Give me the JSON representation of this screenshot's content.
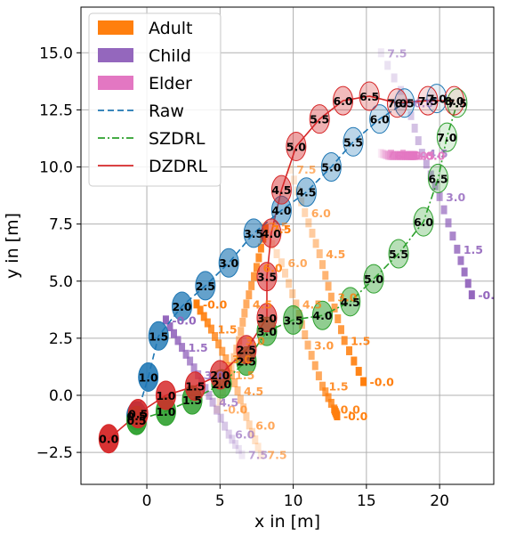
{
  "chart_data": {
    "type": "scatter",
    "xlabel": "x in [m]",
    "ylabel": "y in [m]",
    "xlim": [
      -4.5,
      23.7
    ],
    "ylim": [
      -3.9,
      17.0
    ],
    "xticks": [
      0,
      5,
      10,
      15,
      20
    ],
    "yticks": [
      -2.5,
      0.0,
      2.5,
      5.0,
      7.5,
      10.0,
      12.5,
      15.0
    ],
    "xtick_labels": [
      "0",
      "5",
      "10",
      "15",
      "20"
    ],
    "ytick_labels": [
      "−2.5",
      "0.0",
      "2.5",
      "5.0",
      "7.5",
      "10.0",
      "12.5",
      "15.0"
    ],
    "grid": true,
    "legend_position": "top-left",
    "legend": [
      {
        "name": "Adult",
        "kind": "patch",
        "color": "#ff7f0e"
      },
      {
        "name": "Child",
        "kind": "patch",
        "color": "#9467bd"
      },
      {
        "name": "Elder",
        "kind": "patch",
        "color": "#e377c2"
      },
      {
        "name": "Raw",
        "kind": "line",
        "color": "#1f77b4",
        "dash": "dashed"
      },
      {
        "name": "SZDRL",
        "kind": "line",
        "color": "#2ca02c",
        "dash": "dashdot"
      },
      {
        "name": "DZDRL",
        "kind": "line",
        "color": "#d62728",
        "dash": "solid"
      }
    ],
    "obstacles": [
      {
        "name": "Adult",
        "color": "#ff7f0e",
        "points": [
          {
            "t": "-0.0",
            "x": 13.0,
            "y": -0.9
          },
          {
            "t": "0.0",
            "x": 12.8,
            "y": -0.6
          },
          {
            "t": "1.5",
            "x": 12.0,
            "y": 0.4
          },
          {
            "t": "3.0",
            "x": 11.0,
            "y": 2.2
          },
          {
            "t": "4.5",
            "x": 10.2,
            "y": 4.0
          },
          {
            "t": "6.0",
            "x": 9.2,
            "y": 5.8
          },
          {
            "t": "7.5",
            "x": 7.9,
            "y": 7.4
          }
        ]
      },
      {
        "name": "Adult",
        "color": "#ff7f0e",
        "points": [
          {
            "t": "7.5",
            "x": 8.1,
            "y": 7.3
          },
          {
            "t": "6.0",
            "x": 7.5,
            "y": 5.6
          },
          {
            "t": "4.5",
            "x": 6.8,
            "y": 4.0
          },
          {
            "t": "3.0",
            "x": 6.3,
            "y": 2.4
          },
          {
            "t": "1.5",
            "x": 5.6,
            "y": 0.9
          },
          {
            "t": "-0.0",
            "x": 4.8,
            "y": -0.6
          }
        ]
      },
      {
        "name": "Adult",
        "color": "#ff7f0e",
        "points": [
          {
            "t": "-0.0",
            "x": 14.8,
            "y": 0.6
          },
          {
            "t": "1.5",
            "x": 13.5,
            "y": 2.4
          },
          {
            "t": "3.0",
            "x": 12.6,
            "y": 4.3
          },
          {
            "t": "4.5",
            "x": 11.8,
            "y": 6.2
          },
          {
            "t": "6.0",
            "x": 10.8,
            "y": 8.0
          },
          {
            "t": "7.5",
            "x": 9.8,
            "y": 9.9
          }
        ]
      },
      {
        "name": "Adult",
        "color": "#ff7f0e",
        "points": [
          {
            "t": "-0.0",
            "x": 3.4,
            "y": 4.0
          },
          {
            "t": "1.5",
            "x": 4.4,
            "y": 2.9
          },
          {
            "t": "3.0",
            "x": 5.4,
            "y": 1.6
          },
          {
            "t": "4.5",
            "x": 6.2,
            "y": 0.2
          },
          {
            "t": "6.0",
            "x": 7.0,
            "y": -1.3
          },
          {
            "t": "7.5",
            "x": 7.8,
            "y": -2.6
          }
        ]
      },
      {
        "name": "Child",
        "color": "#9467bd",
        "points": [
          {
            "t": "-0.0",
            "x": 1.3,
            "y": 3.3
          },
          {
            "t": "1.5",
            "x": 2.4,
            "y": 2.1
          },
          {
            "t": "3.0",
            "x": 3.5,
            "y": 0.9
          },
          {
            "t": "4.5",
            "x": 4.5,
            "y": -0.3
          },
          {
            "t": "6.0",
            "x": 5.6,
            "y": -1.7
          },
          {
            "t": "7.5",
            "x": 6.5,
            "y": -2.6
          }
        ]
      },
      {
        "name": "Child",
        "color": "#9467bd",
        "points": [
          {
            "t": "-0.0",
            "x": 22.2,
            "y": 4.4
          },
          {
            "t": "1.5",
            "x": 21.2,
            "y": 6.4
          },
          {
            "t": "3.0",
            "x": 20.0,
            "y": 8.7
          },
          {
            "t": "4.5",
            "x": 18.8,
            "y": 10.6
          },
          {
            "t": "6.0",
            "x": 17.8,
            "y": 12.8
          },
          {
            "t": "7.5",
            "x": 16.0,
            "y": 15.0
          }
        ]
      },
      {
        "name": "Elder",
        "color": "#e377c2",
        "points": [
          {
            "t": "-0.0",
            "x": 18.3,
            "y": 10.5
          },
          {
            "t": "1.5",
            "x": 17.9,
            "y": 10.5
          },
          {
            "t": "3.0",
            "x": 17.4,
            "y": 10.5
          },
          {
            "t": "4.5",
            "x": 16.9,
            "y": 10.5
          },
          {
            "t": "6.0",
            "x": 16.5,
            "y": 10.5
          },
          {
            "t": "7.5",
            "x": 16.0,
            "y": 10.6
          }
        ]
      }
    ],
    "trajectories": [
      {
        "name": "Raw",
        "color": "#1f77b4",
        "dash": "dashed",
        "points": [
          {
            "t": "0.5",
            "x": -0.7,
            "y": -0.9
          },
          {
            "t": "1.0",
            "x": 0.1,
            "y": 0.8
          },
          {
            "t": "1.5",
            "x": 0.8,
            "y": 2.6
          },
          {
            "t": "2.0",
            "x": 2.4,
            "y": 3.9
          },
          {
            "t": "2.5",
            "x": 4.0,
            "y": 4.8
          },
          {
            "t": "3.0",
            "x": 5.6,
            "y": 5.8
          },
          {
            "t": "3.5",
            "x": 7.3,
            "y": 7.1
          },
          {
            "t": "4.0",
            "x": 9.2,
            "y": 8.1
          },
          {
            "t": "4.5",
            "x": 10.9,
            "y": 8.9
          },
          {
            "t": "5.0",
            "x": 12.6,
            "y": 10.0
          },
          {
            "t": "5.5",
            "x": 14.1,
            "y": 11.1
          },
          {
            "t": "6.0",
            "x": 15.9,
            "y": 12.1
          },
          {
            "t": "6.5",
            "x": 17.6,
            "y": 12.8
          },
          {
            "t": "7.0",
            "x": 19.8,
            "y": 13.0
          }
        ]
      },
      {
        "name": "SZDRL",
        "color": "#2ca02c",
        "dash": "dashdot",
        "points": [
          {
            "t": "0.5",
            "x": -0.7,
            "y": -1.1
          },
          {
            "t": "1.0",
            "x": 1.3,
            "y": -0.7
          },
          {
            "t": "1.5",
            "x": 3.1,
            "y": -0.2
          },
          {
            "t": "2.0",
            "x": 5.1,
            "y": 0.5
          },
          {
            "t": "2.5",
            "x": 6.8,
            "y": 1.5
          },
          {
            "t": "3.0",
            "x": 8.2,
            "y": 2.8
          },
          {
            "t": "3.5",
            "x": 10.0,
            "y": 3.3
          },
          {
            "t": "4.0",
            "x": 12.0,
            "y": 3.5
          },
          {
            "t": "4.5",
            "x": 13.9,
            "y": 4.1
          },
          {
            "t": "5.0",
            "x": 15.5,
            "y": 5.1
          },
          {
            "t": "5.5",
            "x": 17.2,
            "y": 6.2
          },
          {
            "t": "6.0",
            "x": 18.9,
            "y": 7.6
          },
          {
            "t": "6.5",
            "x": 19.9,
            "y": 9.5
          },
          {
            "t": "7.0",
            "x": 20.5,
            "y": 11.3
          },
          {
            "t": "7.5",
            "x": 21.2,
            "y": 12.8
          }
        ]
      },
      {
        "name": "DZDRL",
        "color": "#d62728",
        "dash": "solid",
        "points": [
          {
            "t": "0.0",
            "x": -2.6,
            "y": -1.9
          },
          {
            "t": "0.5",
            "x": -0.6,
            "y": -0.8
          },
          {
            "t": "1.0",
            "x": 1.3,
            "y": 0.0
          },
          {
            "t": "1.5",
            "x": 3.3,
            "y": 0.4
          },
          {
            "t": "2.0",
            "x": 5.0,
            "y": 0.9
          },
          {
            "t": "2.5",
            "x": 6.8,
            "y": 2.0
          },
          {
            "t": "3.0",
            "x": 8.2,
            "y": 3.4
          },
          {
            "t": "3.5",
            "x": 8.2,
            "y": 5.2
          },
          {
            "t": "4.0",
            "x": 8.5,
            "y": 7.1
          },
          {
            "t": "4.5",
            "x": 9.2,
            "y": 9.0
          },
          {
            "t": "5.0",
            "x": 10.2,
            "y": 10.9
          },
          {
            "t": "5.5",
            "x": 11.8,
            "y": 12.1
          },
          {
            "t": "6.0",
            "x": 13.4,
            "y": 12.9
          },
          {
            "t": "6.5",
            "x": 15.2,
            "y": 13.1
          },
          {
            "t": "7.0",
            "x": 17.1,
            "y": 12.8
          },
          {
            "t": "7.5",
            "x": 19.2,
            "y": 12.9
          },
          {
            "t": "8.0",
            "x": 21.0,
            "y": 12.9
          }
        ]
      }
    ]
  }
}
